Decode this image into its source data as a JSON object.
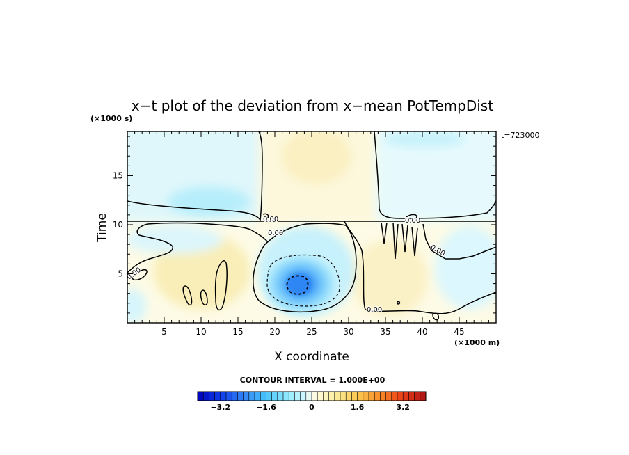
{
  "chart_data": {
    "type": "heatmap",
    "title": "x−t plot of the deviation from x−mean PotTempDist",
    "xlabel": "X coordinate",
    "ylabel": "Time",
    "x_unit": "(×1000 m)",
    "y_unit": "(×1000 s)",
    "time_stamp": "t=723000",
    "xlim": [
      0,
      50
    ],
    "ylim": [
      0,
      19.5
    ],
    "x_ticks": [
      "5",
      "10",
      "15",
      "20",
      "25",
      "30",
      "35",
      "40",
      "45"
    ],
    "y_ticks": [
      "5",
      "10",
      "15"
    ],
    "contour_interval_text": "CONTOUR INTERVAL = 1.000E+00",
    "contour_labels": [
      "0.00",
      "0.00",
      "0.00",
      "0.00",
      "0.00",
      "0.00"
    ],
    "colorbar": {
      "range": [
        -4,
        4
      ],
      "step": 0.2,
      "tick_labels": [
        "−3.2",
        "−1.6",
        "0",
        "1.6",
        "3.2"
      ],
      "tick_values": [
        -3.2,
        -1.6,
        0,
        1.6,
        3.2
      ]
    },
    "features": {
      "cold_core_center": [
        23.3,
        3.8
      ],
      "cold_core_min": -2.3,
      "front_time": 10.5
    }
  }
}
